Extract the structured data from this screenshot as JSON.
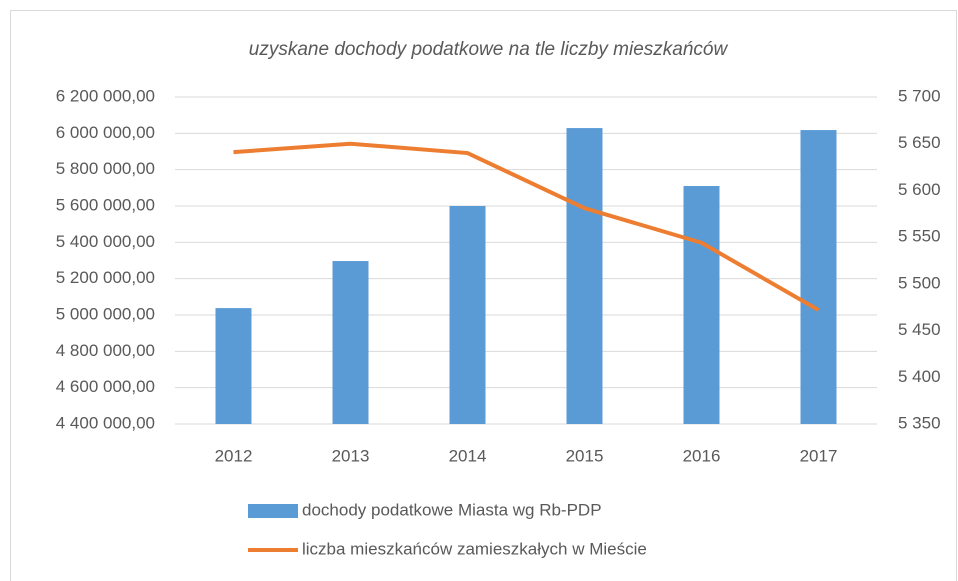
{
  "chart_data": {
    "type": "bar_line",
    "title": "uzyskane dochody podatkowe na tle liczby mieszkańców",
    "categories": [
      "2012",
      "2013",
      "2014",
      "2015",
      "2016",
      "2017"
    ],
    "series": [
      {
        "name": "dochody podatkowe Miasta wg Rb-PDP",
        "type": "bar",
        "color": "#5b9bd5",
        "values": [
          5038000,
          5297000,
          5600000,
          6029000,
          5710000,
          6018000
        ]
      },
      {
        "name": "liczba mieszkańców zamieszkałych w Mieście",
        "type": "line",
        "axis": "y2",
        "color": "#ed7d31",
        "values": [
          5641,
          5650,
          5640,
          5581,
          5544,
          5472
        ]
      }
    ],
    "ylim": [
      4400000,
      6200000
    ],
    "yticks": [
      {
        "value": 4400000,
        "label": "4 400 000,00"
      },
      {
        "value": 4600000,
        "label": "4 600 000,00"
      },
      {
        "value": 4800000,
        "label": "4 800 000,00"
      },
      {
        "value": 5000000,
        "label": "5 000 000,00"
      },
      {
        "value": 5200000,
        "label": "5 200 000,00"
      },
      {
        "value": 5400000,
        "label": "5 400 000,00"
      },
      {
        "value": 5600000,
        "label": "5 600 000,00"
      },
      {
        "value": 5800000,
        "label": "5 800 000,00"
      },
      {
        "value": 6000000,
        "label": "6 000 000,00"
      },
      {
        "value": 6200000,
        "label": "6 200 000,00"
      }
    ],
    "y2lim": [
      5350,
      5700
    ],
    "y2ticks": [
      {
        "value": 5350,
        "label": "5 350"
      },
      {
        "value": 5400,
        "label": "5 400"
      },
      {
        "value": 5450,
        "label": "5 450"
      },
      {
        "value": 5500,
        "label": "5 500"
      },
      {
        "value": 5550,
        "label": "5 550"
      },
      {
        "value": 5600,
        "label": "5 600"
      },
      {
        "value": 5650,
        "label": "5 650"
      },
      {
        "value": 5700,
        "label": "5 700"
      }
    ],
    "grid": true,
    "legend": "bottom"
  }
}
